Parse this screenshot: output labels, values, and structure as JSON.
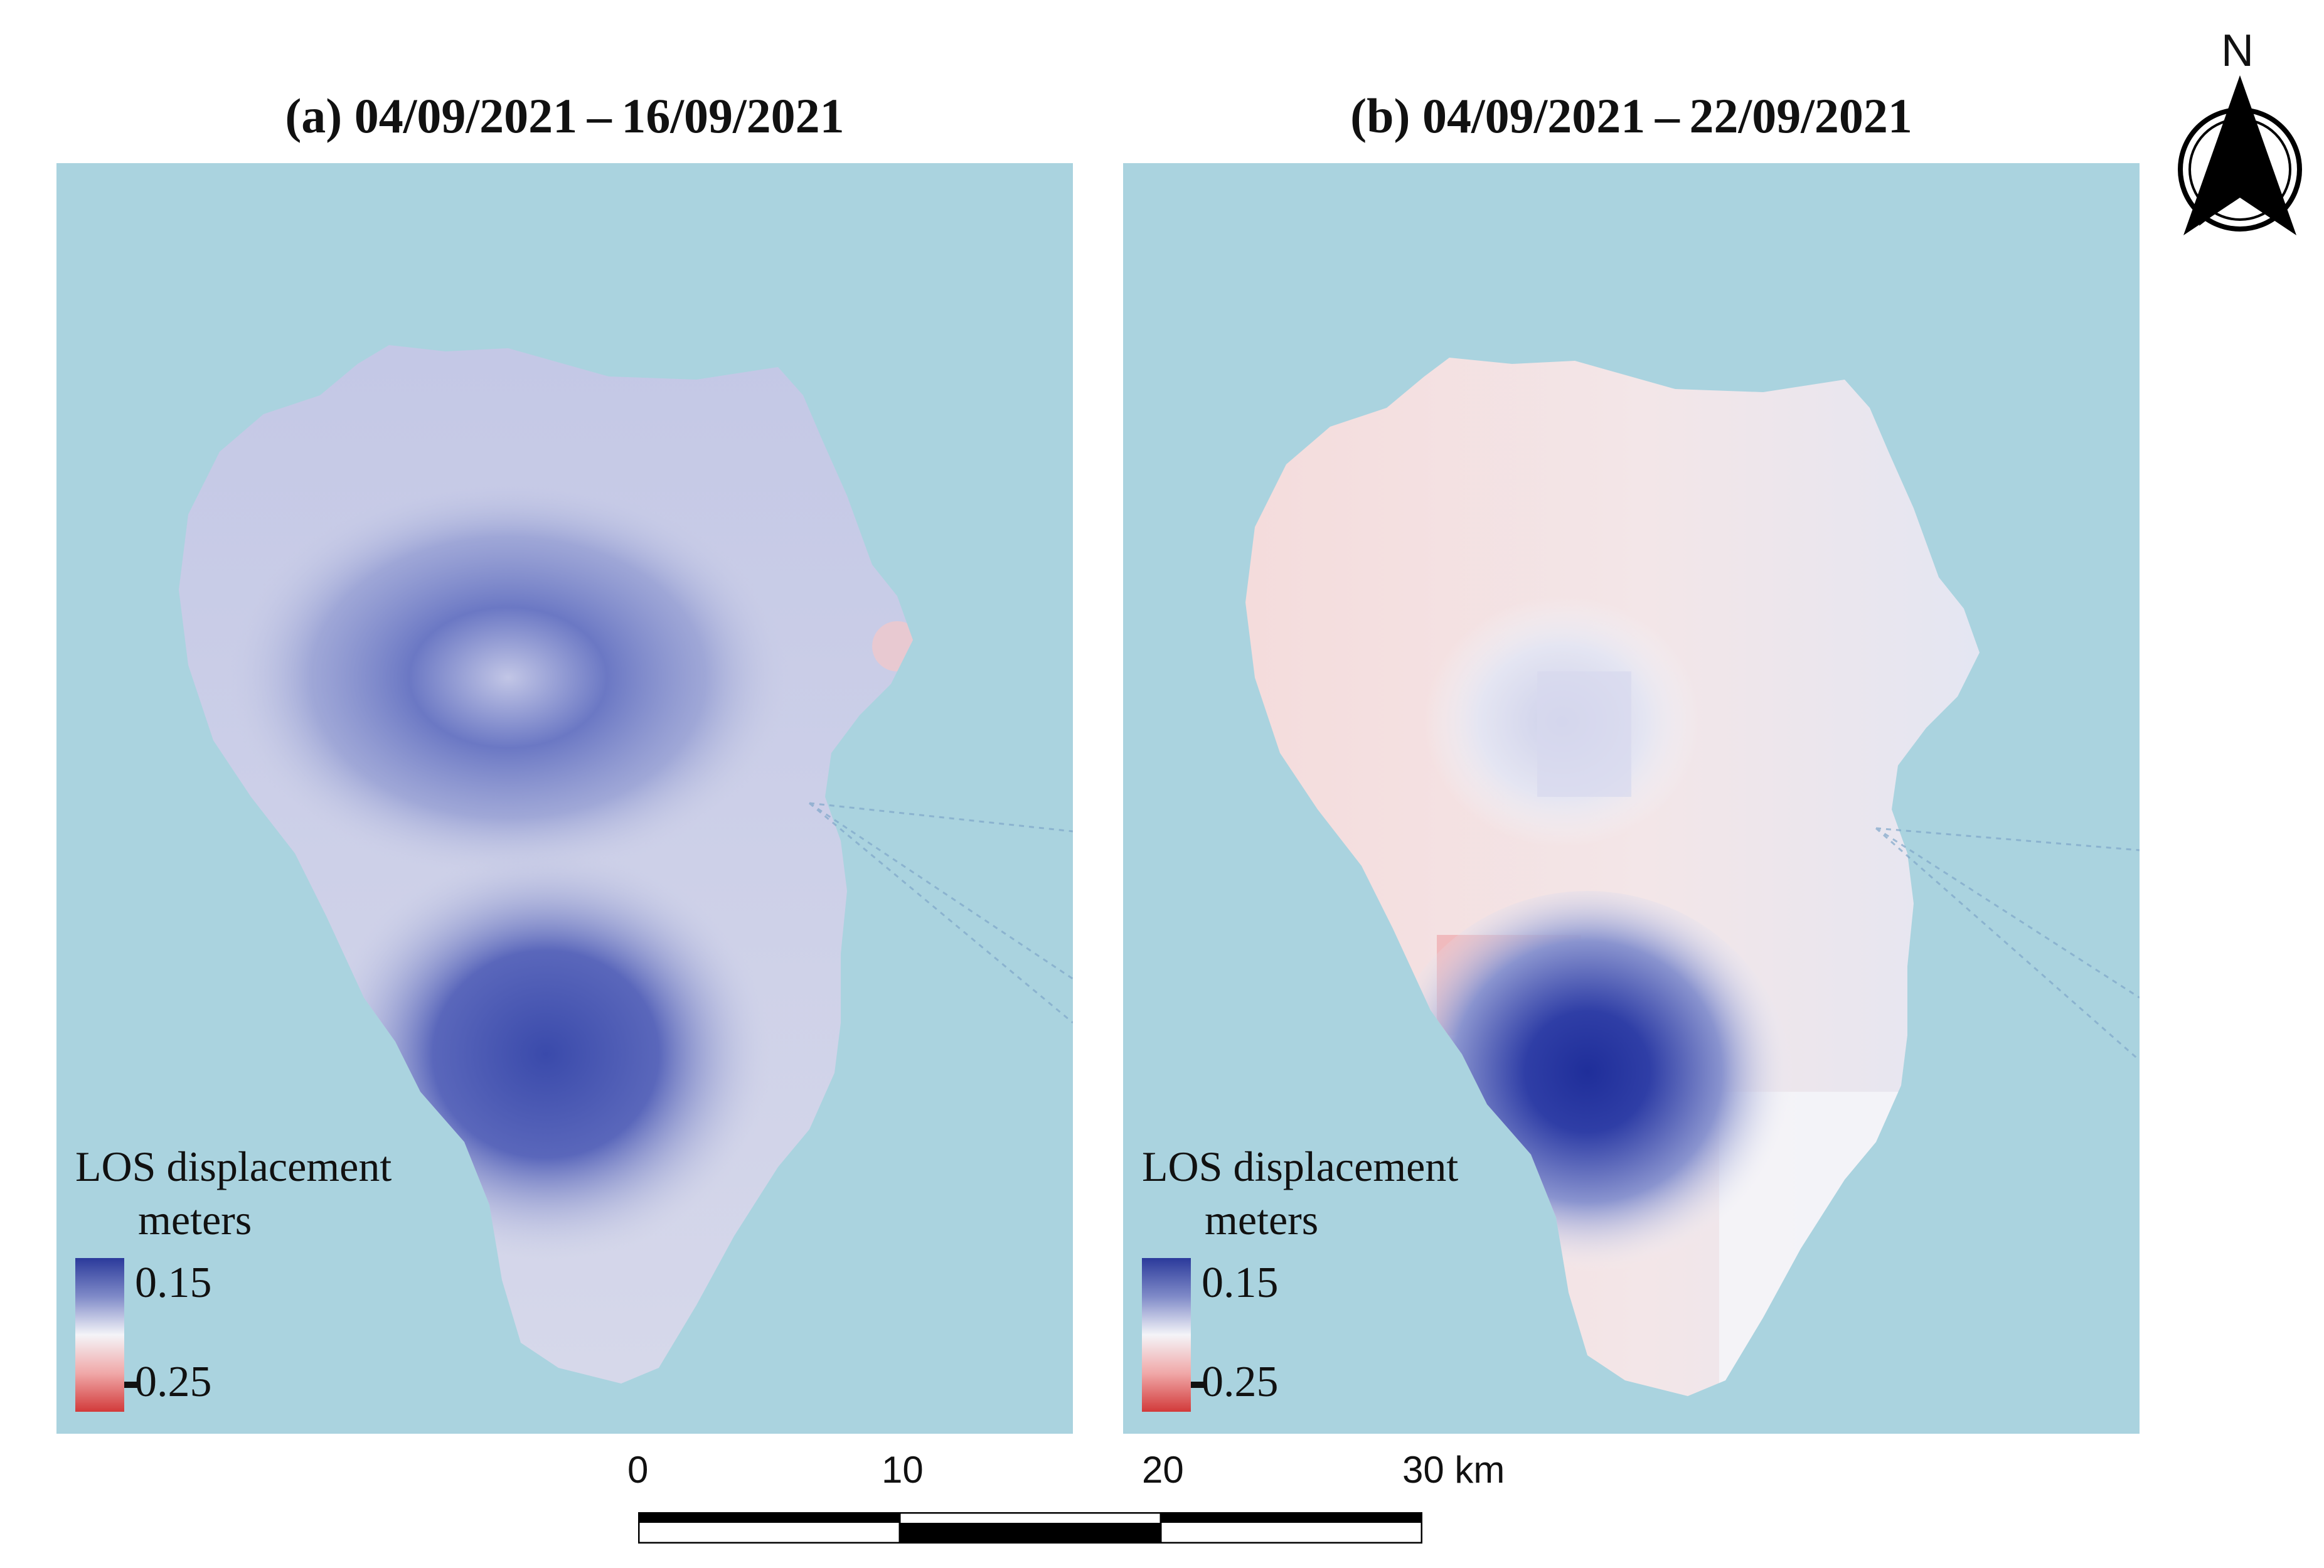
{
  "panels": [
    {
      "id": "a",
      "title": "(a) 04/09/2021 – 16/09/2021",
      "legend": {
        "title": "LOS displacement",
        "unit": "meters",
        "max_label": "0.15",
        "min_label": "0.25"
      },
      "pattern": "uplift-wide"
    },
    {
      "id": "b",
      "title": "(b) 04/09/2021 – 22/09/2021",
      "legend": {
        "title": "LOS displacement",
        "unit": "meters",
        "max_label": "0.15",
        "min_label": "0.25"
      },
      "pattern": "localized-south"
    }
  ],
  "colors": {
    "sea": "#aad3df",
    "positive": "#2b3a9b",
    "neutral": "#f4f4f8",
    "negative": "#d23a3a",
    "land_base_a": "#c9cde6",
    "land_base_b": "#f3dede"
  },
  "scale_bar": {
    "labels": [
      "0",
      "10",
      "20",
      "30 km"
    ]
  },
  "north_arrow": {
    "label": "N",
    "icon": "north-arrow-icon"
  }
}
